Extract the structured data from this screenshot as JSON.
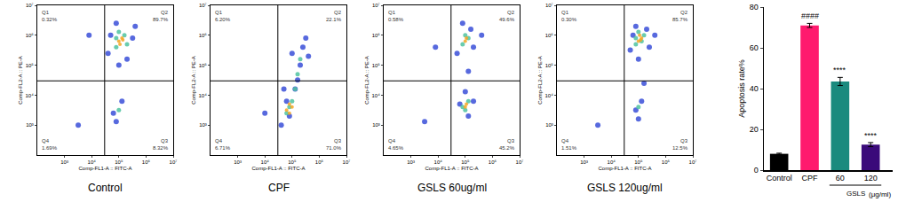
{
  "chart_data": [
    {
      "type": "scatter",
      "caption": "Control",
      "xlabel": "Comp-FL1-A :: FITC-A",
      "ylabel": "Comp-FL2-A :: PE-A",
      "log": true,
      "grid": false,
      "xlim": [
        100,
        10000000
      ],
      "ylim": [
        100,
        10000000
      ],
      "xticks": [
        {
          "value": 1000,
          "label": "10³"
        },
        {
          "value": 10000,
          "label": "10⁴"
        },
        {
          "value": 100000,
          "label": "10⁵"
        },
        {
          "value": 1000000,
          "label": "10⁶"
        },
        {
          "value": 10000000,
          "label": "10⁷"
        }
      ],
      "yticks": [
        {
          "value": 1000,
          "label": "10³"
        },
        {
          "value": 10000,
          "label": "10⁴"
        },
        {
          "value": 100000,
          "label": "10⁵"
        },
        {
          "value": 1000000,
          "label": "10⁶"
        },
        {
          "value": 10000000,
          "label": "10⁷"
        }
      ],
      "gate": {
        "x": 30000,
        "y": 30000
      },
      "quadrants": [
        {
          "name": "Q1",
          "value": 0.32,
          "label": "0.32%"
        },
        {
          "name": "Q2",
          "value": 89.7,
          "label": "89.7%"
        },
        {
          "name": "Q3",
          "value": 8.32,
          "label": "8.32%"
        },
        {
          "name": "Q4",
          "value": 1.69,
          "label": "1.69%"
        }
      ],
      "series": [
        {
          "color": "#3a4fd8",
          "x": [
            40000.0,
            320000.0,
            80000.0,
            200000.0,
            50000.0,
            400000.0,
            100000.0,
            63000.0,
            130000.0,
            80000.0,
            3200.0,
            8000.0
          ],
          "y": [
            250000.0,
            800000.0,
            2500000.0,
            160000.0,
            1000000.0,
            2000000.0,
            100000.0,
            2500.0,
            6300.0,
            1300.0,
            1000.0,
            1000000.0
          ]
        },
        {
          "color": "#4fc3a0",
          "x": [
            80000.0,
            160000.0,
            100000.0,
            200000.0,
            80000.0,
            100000.0
          ],
          "y": [
            400000.0,
            1000000.0,
            1300000.0,
            500000.0,
            800000.0,
            3200.0
          ]
        },
        {
          "color": "#f5a623",
          "x": [
            100000.0,
            130000.0,
            110000.0,
            140000.0
          ],
          "y": [
            630000.0,
            800000.0,
            500000.0,
            700000.0
          ]
        }
      ]
    },
    {
      "type": "scatter",
      "caption": "CPF",
      "xlabel": "Comp-FL1-A :: FITC-A",
      "ylabel": "Comp-FL2-A :: PE-A",
      "log": true,
      "grid": false,
      "xlim": [
        100,
        10000000
      ],
      "ylim": [
        100,
        10000000
      ],
      "xticks": [
        {
          "value": 1000,
          "label": "10³"
        },
        {
          "value": 10000,
          "label": "10⁴"
        },
        {
          "value": 100000,
          "label": "10⁵"
        },
        {
          "value": 1000000,
          "label": "10⁶"
        },
        {
          "value": 10000000,
          "label": "10⁷"
        }
      ],
      "yticks": [
        {
          "value": 1000,
          "label": "10³"
        },
        {
          "value": 10000,
          "label": "10⁴"
        },
        {
          "value": 100000,
          "label": "10⁵"
        },
        {
          "value": 1000000,
          "label": "10⁶"
        },
        {
          "value": 10000000,
          "label": "10⁷"
        }
      ],
      "gate": {
        "x": 30000,
        "y": 30000
      },
      "quadrants": [
        {
          "name": "Q1",
          "value": 6.2,
          "label": "6.20%"
        },
        {
          "name": "Q2",
          "value": 22.1,
          "label": "22.1%"
        },
        {
          "name": "Q3",
          "value": 71.0,
          "label": "71.0%"
        },
        {
          "name": "Q4",
          "value": 6.71,
          "label": "6.71%"
        }
      ],
      "series": [
        {
          "color": "#3a4fd8",
          "x": [
            40000.0,
            63000.0,
            160000.0,
            200000.0,
            250000.0,
            130000.0,
            320000.0,
            80000.0,
            10000.0,
            50000.0,
            400000.0,
            100000.0
          ],
          "y": [
            1000.0,
            6300.0,
            32000.0,
            100000.0,
            400000.0,
            16000.0,
            800000.0,
            2000.0,
            2500.0,
            16000.0,
            200000.0,
            250000.0
          ]
        },
        {
          "color": "#4fc3a0",
          "x": [
            63000.0,
            80000.0,
            100000.0,
            130000.0,
            160000.0,
            200000.0
          ],
          "y": [
            2500.0,
            4000.0,
            6300.0,
            16000.0,
            50000.0,
            160000.0
          ]
        },
        {
          "color": "#f5a623",
          "x": [
            63000.0,
            80000.0,
            80000.0,
            100000.0
          ],
          "y": [
            3200.0,
            2500.0,
            5000.0,
            4000.0
          ]
        }
      ]
    },
    {
      "type": "scatter",
      "caption": "GSLS 60ug/ml",
      "xlabel": "Comp-FL1-A :: FITC-A",
      "ylabel": "Comp-FL2-A :: PE-A",
      "log": true,
      "grid": false,
      "xlim": [
        100,
        10000000
      ],
      "ylim": [
        100,
        10000000
      ],
      "xticks": [
        {
          "value": 1000,
          "label": "10³"
        },
        {
          "value": 10000,
          "label": "10⁴"
        },
        {
          "value": 100000,
          "label": "10⁵"
        },
        {
          "value": 1000000,
          "label": "10⁶"
        },
        {
          "value": 10000000,
          "label": "10⁷"
        }
      ],
      "yticks": [
        {
          "value": 1000,
          "label": "10³"
        },
        {
          "value": 10000,
          "label": "10⁴"
        },
        {
          "value": 100000,
          "label": "10⁵"
        },
        {
          "value": 1000000,
          "label": "10⁶"
        },
        {
          "value": 10000000,
          "label": "10⁷"
        }
      ],
      "gate": {
        "x": 30000,
        "y": 30000
      },
      "quadrants": [
        {
          "name": "Q1",
          "value": 0.58,
          "label": "0.58%"
        },
        {
          "name": "Q2",
          "value": 49.6,
          "label": "49.6%"
        },
        {
          "name": "Q3",
          "value": 45.2,
          "label": "45.2%"
        },
        {
          "name": "Q4",
          "value": 4.65,
          "label": "4.65%"
        }
      ],
      "series": [
        {
          "color": "#3a4fd8",
          "x": [
            50000.0,
            160000.0,
            80000.0,
            200000.0,
            130000.0,
            63000.0,
            100000.0,
            400000.0,
            200000.0,
            3200.0,
            8000.0,
            130000.0
          ],
          "y": [
            250000.0,
            1600000.0,
            2500000.0,
            400000.0,
            2000.0,
            5000.0,
            13000.0,
            1000000.0,
            6300.0,
            1300.0,
            400000.0,
            63000.0
          ]
        },
        {
          "color": "#4fc3a0",
          "x": [
            80000.0,
            130000.0,
            100000.0,
            130000.0,
            80000.0,
            100000.0
          ],
          "y": [
            500000.0,
            800000.0,
            1000000.0,
            6300.0,
            4000.0,
            3200.0
          ]
        },
        {
          "color": "#f5a623",
          "x": [
            100000.0,
            110000.0,
            100000.0,
            110000.0
          ],
          "y": [
            630000.0,
            800000.0,
            4000.0,
            5000.0
          ]
        }
      ]
    },
    {
      "type": "scatter",
      "caption": "GSLS 120ug/ml",
      "xlabel": "Comp-FL1-A :: FITC-A",
      "ylabel": "Comp-FL2-A :: PE-A",
      "log": true,
      "grid": false,
      "xlim": [
        100,
        10000000
      ],
      "ylim": [
        100,
        10000000
      ],
      "xticks": [
        {
          "value": 1000,
          "label": "10³"
        },
        {
          "value": 10000,
          "label": "10⁴"
        },
        {
          "value": 100000,
          "label": "10⁵"
        },
        {
          "value": 1000000,
          "label": "10⁶"
        },
        {
          "value": 10000000,
          "label": "10⁷"
        }
      ],
      "yticks": [
        {
          "value": 1000,
          "label": "10³"
        },
        {
          "value": 10000,
          "label": "10⁴"
        },
        {
          "value": 100000,
          "label": "10⁵"
        },
        {
          "value": 1000000,
          "label": "10⁶"
        },
        {
          "value": 10000000,
          "label": "10⁷"
        }
      ],
      "gate": {
        "x": 30000,
        "y": 30000
      },
      "quadrants": [
        {
          "name": "Q1",
          "value": 0.3,
          "label": "0.30%"
        },
        {
          "name": "Q2",
          "value": 85.7,
          "label": "85.7%"
        },
        {
          "name": "Q3",
          "value": 12.5,
          "label": "12.5%"
        },
        {
          "name": "Q4",
          "value": 1.51,
          "label": "1.51%"
        }
      ],
      "series": [
        {
          "color": "#3a4fd8",
          "x": [
            50000.0,
            200000.0,
            80000.0,
            250000.0,
            63000.0,
            400000.0,
            100000.0,
            80000.0,
            130000.0,
            100000.0,
            3200.0,
            160000.0
          ],
          "y": [
            320000.0,
            1600000.0,
            2000000.0,
            400000.0,
            1000000.0,
            1000000.0,
            160000.0,
            3200.0,
            6300.0,
            1600.0,
            1000.0,
            25000.0
          ]
        },
        {
          "color": "#4fc3a0",
          "x": [
            80000.0,
            160000.0,
            100000.0,
            130000.0,
            80000.0,
            100000.0
          ],
          "y": [
            500000.0,
            1000000.0,
            1300000.0,
            630000.0,
            800000.0,
            4000.0
          ]
        },
        {
          "color": "#f5a623",
          "x": [
            100000.0,
            130000.0,
            110000.0,
            120000.0
          ],
          "y": [
            630000.0,
            800000.0,
            1000000.0,
            700000.0
          ]
        }
      ]
    },
    {
      "type": "bar",
      "ylabel": "Apoptosis rate%",
      "grid": false,
      "categories": [
        "Control",
        "CPF",
        "60",
        "120"
      ],
      "values": [
        8,
        71,
        43.5,
        12.5
      ],
      "errors": [
        0.3,
        1,
        2,
        1
      ],
      "colors": [
        "#000000",
        "#ff1a6e",
        "#1a8a7e",
        "#3a0a7a"
      ],
      "ylim": [
        0,
        80
      ],
      "yticks": [
        0,
        20,
        40,
        60,
        80
      ],
      "annotations": [
        {
          "category": "CPF",
          "text": "####"
        },
        {
          "category": "60",
          "text": "****"
        },
        {
          "category": "120",
          "text": "****"
        }
      ],
      "group_label": {
        "text": "GSLS",
        "categories": [
          "60",
          "120"
        ]
      },
      "unit_label": "(μg/ml)"
    }
  ]
}
